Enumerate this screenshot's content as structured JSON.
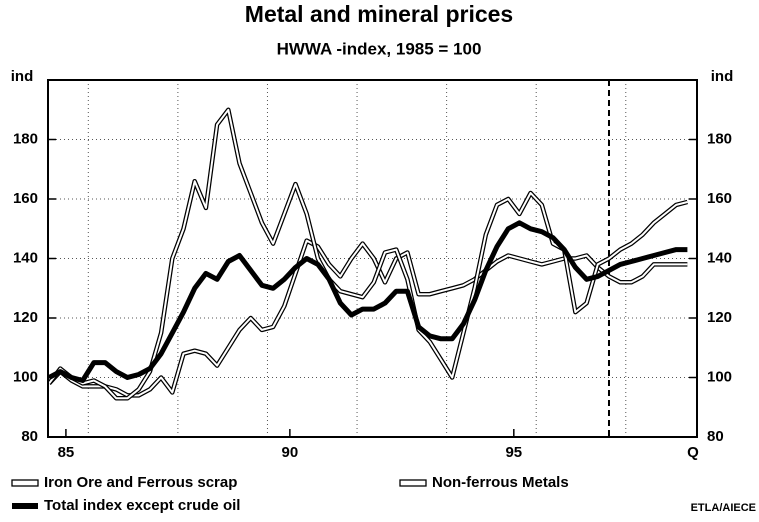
{
  "chart_data": {
    "type": "line",
    "title": "Metal and mineral prices",
    "subtitle": "HWWA -index, 1985 = 100",
    "y_axis_label": "ind",
    "y2_axis_label": "ind",
    "x_axis_label": "Q",
    "source": "ETLA/AIECE",
    "x": [
      85.125,
      85.375,
      85.625,
      85.875,
      86.125,
      86.375,
      86.625,
      86.875,
      87.125,
      87.375,
      87.625,
      87.875,
      88.125,
      88.375,
      88.625,
      88.875,
      89.125,
      89.375,
      89.625,
      89.875,
      90.125,
      90.375,
      90.625,
      90.875,
      91.125,
      91.375,
      91.625,
      91.875,
      92.125,
      92.375,
      92.625,
      92.875,
      93.125,
      93.375,
      93.625,
      93.875,
      94.125,
      94.375,
      94.625,
      94.875,
      95.125,
      95.375,
      95.625,
      95.875,
      96.125,
      96.375,
      96.625,
      96.875,
      97.125,
      97.375,
      97.625,
      97.875,
      98.125,
      98.375,
      98.625,
      98.875,
      99.125,
      99.375
    ],
    "series": [
      {
        "name": "Iron Ore and Ferrous scrap",
        "color": "#ffffff",
        "outline": "#000000",
        "values": [
          98,
          102,
          99,
          97,
          97,
          97,
          96,
          94,
          94,
          96,
          100,
          95,
          108,
          109,
          108,
          104,
          110,
          116,
          120,
          116,
          117,
          124,
          135,
          146,
          144,
          138,
          134,
          140,
          145,
          140,
          132,
          140,
          142,
          128,
          128,
          129,
          130,
          131,
          133,
          136,
          139,
          141,
          140,
          139,
          138,
          139,
          140,
          140,
          141,
          137,
          134,
          132,
          132,
          134,
          138,
          138,
          138,
          138
        ]
      },
      {
        "name": "Non-ferrous Metals",
        "color": "#ffffff",
        "outline": "#000000",
        "values": [
          98,
          103,
          100,
          98,
          99,
          97,
          93,
          93,
          96,
          102,
          115,
          140,
          150,
          166,
          157,
          185,
          190,
          172,
          162,
          152,
          145,
          155,
          165,
          155,
          140,
          133,
          129,
          128,
          127,
          132,
          142,
          143,
          133,
          116,
          112,
          106,
          100,
          115,
          130,
          148,
          158,
          160,
          155,
          162,
          158,
          145,
          143,
          122,
          125,
          138,
          140,
          143,
          145,
          148,
          152,
          155,
          158,
          159
        ]
      },
      {
        "name": "Total index except crude oil",
        "color": "#000000",
        "values": [
          100,
          102,
          100,
          99,
          105,
          105,
          102,
          100,
          101,
          103,
          108,
          115,
          122,
          130,
          135,
          133,
          139,
          141,
          136,
          131,
          130,
          133,
          137,
          140,
          138,
          133,
          125,
          121,
          123,
          123,
          125,
          129,
          129,
          117,
          114,
          113,
          113,
          118,
          126,
          136,
          144,
          150,
          152,
          150,
          149,
          147,
          143,
          137,
          133,
          134,
          136,
          138,
          139,
          140,
          141,
          142,
          143,
          143
        ]
      }
    ],
    "xlim": [
      85.1,
      99.59
    ],
    "xticks": [
      {
        "value": 85.5,
        "label": "85"
      },
      {
        "value": 90.5,
        "label": "90"
      },
      {
        "value": 95.5,
        "label": "95"
      }
    ],
    "ylim": [
      80,
      200
    ],
    "yticks": [
      80,
      100,
      120,
      140,
      160,
      180
    ],
    "y2lim": [
      80,
      200
    ],
    "y2ticks": [
      80,
      100,
      120,
      140,
      160,
      180
    ],
    "x_grid": [
      86,
      88,
      90,
      92,
      94,
      96,
      98
    ],
    "forecast_x": 97.625,
    "grid": true
  }
}
